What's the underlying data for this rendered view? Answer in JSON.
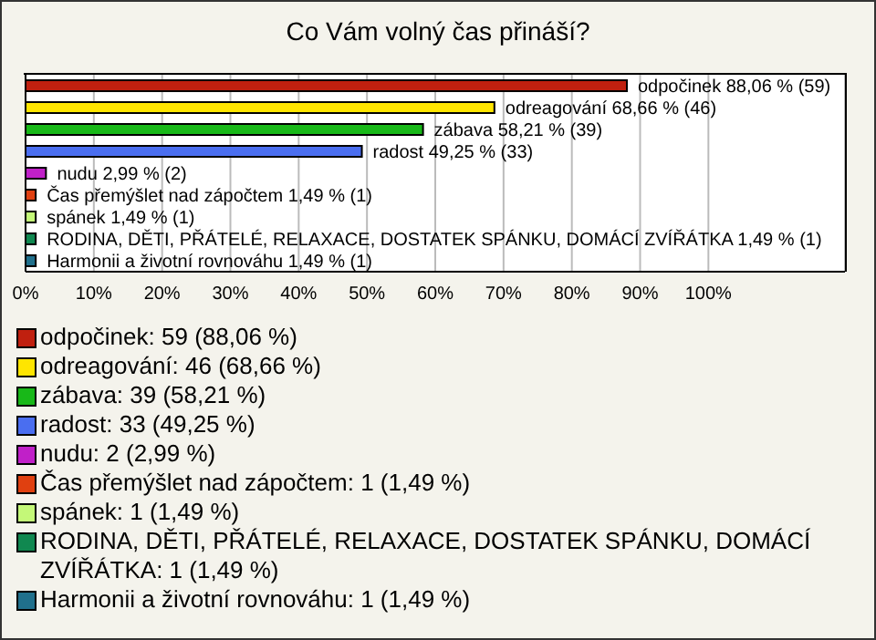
{
  "chart_data": {
    "type": "bar",
    "orientation": "horizontal",
    "stacked": true,
    "title": "Co Vám volný čas přináší?",
    "categories": [
      null,
      null,
      null,
      null,
      null,
      null,
      null,
      null,
      null
    ],
    "series": [
      {
        "name": "odpočinek: 59 (88,06 %)",
        "color": "#c0200f",
        "values": [
          88.06,
          null,
          null,
          null,
          null,
          null,
          null,
          null,
          null
        ],
        "value_labels": [
          "odpočinek 88,06 % (59)",
          null,
          null,
          null,
          null,
          null,
          null,
          null,
          null
        ]
      },
      {
        "name": "odreagování: 46 (68,66 %)",
        "color": "#ffe500",
        "values": [
          null,
          68.66,
          null,
          null,
          null,
          null,
          null,
          null,
          null
        ],
        "value_labels": [
          null,
          "odreagování 68,66 % (46)",
          null,
          null,
          null,
          null,
          null,
          null,
          null
        ]
      },
      {
        "name": "zábava: 39 (58,21 %)",
        "color": "#18b818",
        "values": [
          null,
          null,
          58.21,
          null,
          null,
          null,
          null,
          null,
          null
        ],
        "value_labels": [
          null,
          null,
          "zábava 58,21 % (39)",
          null,
          null,
          null,
          null,
          null,
          null
        ]
      },
      {
        "name": "radost: 33 (49,25 %)",
        "color": "#4a6ef0",
        "values": [
          null,
          null,
          null,
          49.25,
          null,
          null,
          null,
          null,
          null
        ],
        "value_labels": [
          null,
          null,
          null,
          "radost 49,25 % (33)",
          null,
          null,
          null,
          null,
          null
        ]
      },
      {
        "name": "nudu: 2 (2,99 %)",
        "color": "#c020c8",
        "values": [
          null,
          null,
          null,
          null,
          2.99,
          null,
          null,
          null,
          null
        ],
        "value_labels": [
          null,
          null,
          null,
          null,
          "nudu 2,99 % (2)",
          null,
          null,
          null,
          null
        ]
      },
      {
        "name": "Čas přemýšlet nad zápočtem: 1 (1,49 %)",
        "color": "#e04010",
        "values": [
          null,
          null,
          null,
          null,
          null,
          1.49,
          null,
          null,
          null
        ],
        "value_labels": [
          null,
          null,
          null,
          null,
          null,
          "Čas přemýšlet nad zápočtem 1,49 % (1)",
          null,
          null,
          null
        ]
      },
      {
        "name": "spánek: 1 (1,49 %)",
        "color": "#c4f878",
        "values": [
          null,
          null,
          null,
          null,
          null,
          null,
          1.49,
          null,
          null
        ],
        "value_labels": [
          null,
          null,
          null,
          null,
          null,
          null,
          "spánek 1,49 % (1)",
          null,
          null
        ]
      },
      {
        "name": "RODINA, DĚTI, PŘÁTELÉ, RELAXACE, DOSTATEK SPÁNKU, DOMÁCÍ ZVÍŘÁTKA: 1 (1,49 %)",
        "color": "#108850",
        "values": [
          null,
          null,
          null,
          null,
          null,
          null,
          null,
          1.49,
          null
        ],
        "value_labels": [
          null,
          null,
          null,
          null,
          null,
          null,
          null,
          "RODINA, DĚTI, PŘÁTELÉ, RELAXACE, DOSTATEK SPÁNKU, DOMÁCÍ ZVÍŘÁTKA 1,49 % (1)",
          null
        ]
      },
      {
        "name": "Harmonii a životní rovnováhu: 1 (1,49 %)",
        "color": "#20708c",
        "values": [
          null,
          null,
          null,
          null,
          null,
          null,
          null,
          null,
          1.49
        ],
        "value_labels": [
          null,
          null,
          null,
          null,
          null,
          null,
          null,
          null,
          "Harmonii a životní rovnováhu 1,49 % (1)"
        ]
      }
    ],
    "xlim": [
      0,
      120
    ],
    "xticks": [
      {
        "value": 0,
        "label": "0%"
      },
      {
        "value": 10,
        "label": "10%"
      },
      {
        "value": 20,
        "label": "20%"
      },
      {
        "value": 30,
        "label": "30%"
      },
      {
        "value": 40,
        "label": "40%"
      },
      {
        "value": 50,
        "label": "50%"
      },
      {
        "value": 60,
        "label": "60%"
      },
      {
        "value": 70,
        "label": "70%"
      },
      {
        "value": 80,
        "label": "80%"
      },
      {
        "value": 90,
        "label": "90%"
      },
      {
        "value": 100,
        "label": "100%"
      }
    ],
    "grid": "x",
    "legend": "bottom",
    "tick_labels": "x"
  }
}
